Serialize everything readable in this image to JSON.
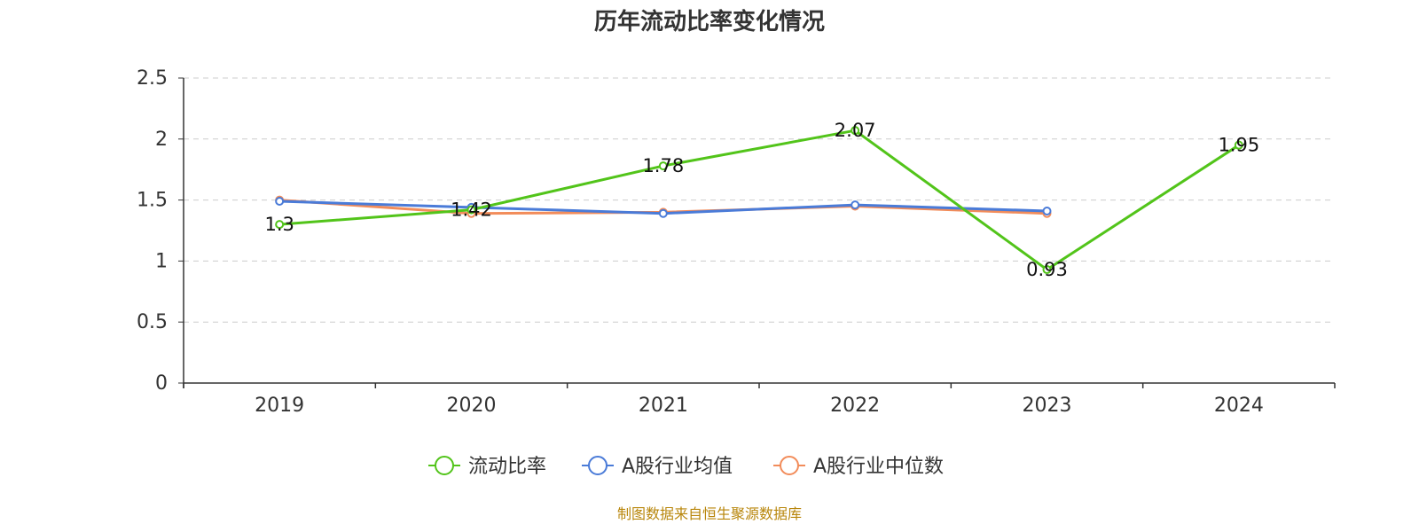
{
  "chart_data": {
    "type": "line",
    "title": "历年流动比率变化情况",
    "categories": [
      "2019",
      "2020",
      "2021",
      "2022",
      "2023",
      "2024"
    ],
    "ylim": [
      0,
      2.5
    ],
    "yticks": [
      "0",
      "0.5",
      "1",
      "1.5",
      "2",
      "2.5"
    ],
    "grid": true,
    "legend_position": "bottom",
    "series": [
      {
        "name": "流动比率",
        "color": "#52c41a",
        "values": [
          1.3,
          1.42,
          1.78,
          2.07,
          0.93,
          1.95
        ],
        "labels": [
          "1.3",
          "1.42",
          "1.78",
          "2.07",
          "0.93",
          "1.95"
        ]
      },
      {
        "name": "A股行业均值",
        "color": "#4a7bd8",
        "values": [
          1.49,
          1.44,
          1.39,
          1.46,
          1.41,
          null
        ]
      },
      {
        "name": "A股行业中位数",
        "color": "#f28c5a",
        "values": [
          1.5,
          1.39,
          1.4,
          1.45,
          1.39,
          null
        ]
      }
    ]
  },
  "footer": {
    "source": "制图数据来自恒生聚源数据库"
  }
}
